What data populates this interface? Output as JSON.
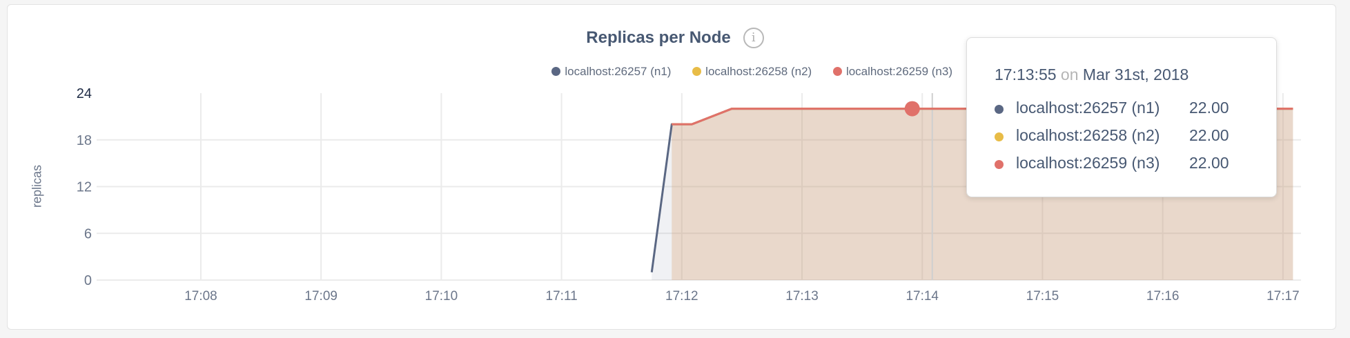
{
  "chart_data": {
    "type": "area",
    "title": "Replicas per Node",
    "ylabel": "replicas",
    "xlabel": "",
    "ylim": [
      0,
      24
    ],
    "yticks": [
      "0",
      "6",
      "12",
      "18",
      "24"
    ],
    "xlim": [
      "17:07:08",
      "17:17:09"
    ],
    "xticks": [
      "17:08",
      "17:09",
      "17:10",
      "17:11",
      "17:12",
      "17:13",
      "17:14",
      "17:15",
      "17:16",
      "17:17"
    ],
    "grid": true,
    "legend_placement": "top-right",
    "series": [
      {
        "name": "localhost:26257 (n1)",
        "color": "#5a6783",
        "points": [
          [
            "17:11:45",
            1
          ],
          [
            "17:11:55",
            20
          ],
          [
            "17:12:05",
            20
          ],
          [
            "17:12:25",
            22
          ],
          [
            "17:17:05",
            22
          ]
        ]
      },
      {
        "name": "localhost:26258 (n2)",
        "color": "#e8bc47",
        "points": [
          [
            "17:11:55",
            20
          ],
          [
            "17:12:05",
            20
          ],
          [
            "17:12:25",
            22
          ],
          [
            "17:17:05",
            22
          ]
        ]
      },
      {
        "name": "localhost:26259 (n3)",
        "color": "#e0716a",
        "points": [
          [
            "17:11:55",
            20
          ],
          [
            "17:12:05",
            20
          ],
          [
            "17:12:25",
            22
          ],
          [
            "17:17:05",
            22
          ]
        ]
      }
    ],
    "hover": {
      "time": "17:13:55",
      "cursor_time": "17:14:05"
    }
  },
  "info_icon": "i",
  "tooltip": {
    "time": "17:13:55",
    "on": "on",
    "date": "Mar 31st, 2018",
    "rows": [
      {
        "label": "localhost:26257 (n1)",
        "value": "22.00",
        "color": "#5a6783"
      },
      {
        "label": "localhost:26258 (n2)",
        "value": "22.00",
        "color": "#e8bc47"
      },
      {
        "label": "localhost:26259 (n3)",
        "value": "22.00",
        "color": "#e0716a"
      }
    ]
  }
}
